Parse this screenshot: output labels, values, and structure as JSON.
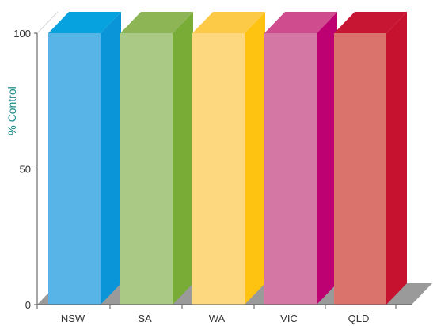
{
  "chart_data": {
    "type": "bar",
    "categories": [
      "NSW",
      "SA",
      "WA",
      "VIC",
      "QLD"
    ],
    "values": [
      100,
      100,
      100,
      100,
      100
    ],
    "ylabel": "% Control",
    "xlabel": "",
    "ylim": [
      0,
      100
    ],
    "yticks": [
      "0",
      "50",
      "100"
    ],
    "grid": false,
    "style": "3d",
    "colors": [
      {
        "front": "#58b4e6",
        "side": "#0a95d9",
        "top": "#06a2df"
      },
      {
        "front": "#a9c985",
        "side": "#79ac37",
        "top": "#8db555"
      },
      {
        "front": "#fdd87e",
        "side": "#fec210",
        "top": "#fdca48"
      },
      {
        "front": "#d577a4",
        "side": "#bd0072",
        "top": "#cf4d8e"
      },
      {
        "front": "#da736b",
        "side": "#c7122f",
        "top": "#c71633"
      }
    ],
    "floor_color": "#9a9a9a",
    "wall_color": "#d9d9d9"
  }
}
